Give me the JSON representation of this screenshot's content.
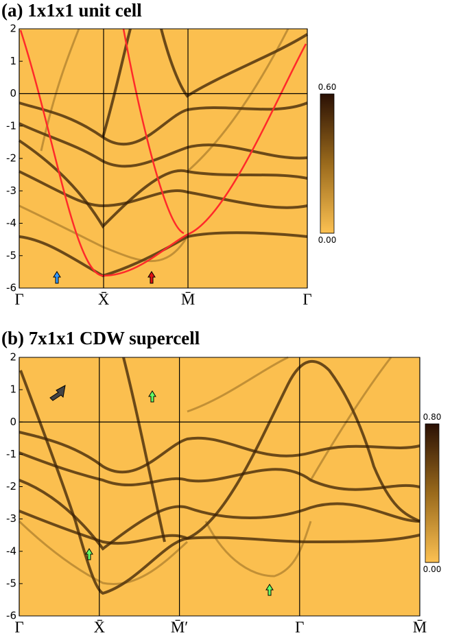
{
  "panels": [
    {
      "title": "(a) 1x1x1 unit cell",
      "ylim": [
        -6,
        2
      ],
      "yticks": [
        2,
        1,
        0,
        -1,
        -2,
        -3,
        -4,
        -5,
        -6
      ],
      "hline": 0,
      "xlim": [
        0,
        3.414
      ],
      "xticks": [
        {
          "value": 0,
          "label": "Γ"
        },
        {
          "value": 1,
          "label": "X̄"
        },
        {
          "value": 2,
          "label": "M̄"
        },
        {
          "value": 3.414,
          "label": "Γ"
        }
      ],
      "colorbar": {
        "lim": [
          0,
          0.6
        ],
        "ticks": [
          {
            "value": 0.6,
            "label": "0.60"
          },
          {
            "value": 0,
            "label": "0.00"
          }
        ]
      }
    },
    {
      "title": "(b) 7x1x1 CDW supercell",
      "ylim": [
        -6,
        2
      ],
      "yticks": [
        2,
        1,
        0,
        -1,
        -2,
        -3,
        -4,
        -5,
        -6
      ],
      "hline": 0,
      "xlim": [
        0,
        5
      ],
      "xticks": [
        {
          "value": 0,
          "label": "Γ"
        },
        {
          "value": 1,
          "label": "X̄"
        },
        {
          "value": 2,
          "label": "M̄′"
        },
        {
          "value": 3.5,
          "label": "Γ"
        },
        {
          "value": 5,
          "label": "M̄"
        }
      ],
      "colorbar": {
        "lim": [
          0,
          0.8
        ],
        "ticks": [
          {
            "value": 0.8,
            "label": "0.80"
          },
          {
            "value": 0,
            "label": "0.00"
          }
        ]
      }
    }
  ]
}
